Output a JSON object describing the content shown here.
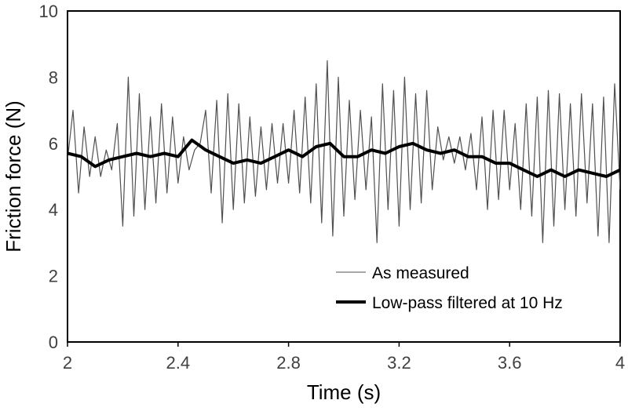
{
  "chart_data": {
    "type": "line",
    "title": "",
    "xlabel": "Time (s)",
    "ylabel": "Friction force (N)",
    "xlim": [
      2,
      4
    ],
    "ylim": [
      0,
      10
    ],
    "x_ticks": [
      2,
      2.4,
      2.8,
      3.2,
      3.6,
      4
    ],
    "x_tick_labels": [
      "2",
      "2.4",
      "2.8",
      "3.2",
      "3.6",
      "4"
    ],
    "y_ticks": [
      0,
      2,
      4,
      6,
      8,
      10
    ],
    "y_tick_labels": [
      "0",
      "2",
      "4",
      "6",
      "8",
      "10"
    ],
    "grid": false,
    "legend": {
      "position": "bottom-right"
    },
    "series": [
      {
        "name": "As measured",
        "color": "#505050",
        "style": "thin",
        "x": [
          2.0,
          2.02,
          2.04,
          2.06,
          2.08,
          2.1,
          2.12,
          2.14,
          2.16,
          2.18,
          2.2,
          2.22,
          2.24,
          2.26,
          2.28,
          2.3,
          2.32,
          2.34,
          2.36,
          2.38,
          2.4,
          2.42,
          2.44,
          2.46,
          2.48,
          2.5,
          2.52,
          2.54,
          2.56,
          2.58,
          2.6,
          2.62,
          2.64,
          2.66,
          2.68,
          2.7,
          2.72,
          2.74,
          2.76,
          2.78,
          2.8,
          2.82,
          2.84,
          2.86,
          2.88,
          2.9,
          2.92,
          2.94,
          2.96,
          2.98,
          3.0,
          3.02,
          3.04,
          3.06,
          3.08,
          3.1,
          3.12,
          3.14,
          3.16,
          3.18,
          3.2,
          3.22,
          3.24,
          3.26,
          3.28,
          3.3,
          3.32,
          3.34,
          3.36,
          3.38,
          3.4,
          3.42,
          3.44,
          3.46,
          3.48,
          3.5,
          3.52,
          3.54,
          3.56,
          3.58,
          3.6,
          3.62,
          3.64,
          3.66,
          3.68,
          3.7,
          3.72,
          3.74,
          3.76,
          3.78,
          3.8,
          3.82,
          3.84,
          3.86,
          3.88,
          3.9,
          3.92,
          3.94,
          3.96,
          3.98,
          4.0
        ],
        "y": [
          5.5,
          7.0,
          4.5,
          6.5,
          5.0,
          6.2,
          5.0,
          5.8,
          5.2,
          6.6,
          3.5,
          8.0,
          3.8,
          7.5,
          4.0,
          6.8,
          4.2,
          7.2,
          4.5,
          6.8,
          4.8,
          6.2,
          5.2,
          5.8,
          6.0,
          7.0,
          4.5,
          7.3,
          3.6,
          7.5,
          4.0,
          7.2,
          4.2,
          6.8,
          4.4,
          6.5,
          4.6,
          6.6,
          4.8,
          6.6,
          4.8,
          7.0,
          4.5,
          7.4,
          4.2,
          7.8,
          3.6,
          8.5,
          3.2,
          8.0,
          3.8,
          7.3,
          4.3,
          7.0,
          4.6,
          6.8,
          3.0,
          7.8,
          4.0,
          7.6,
          3.5,
          8.0,
          4.0,
          7.5,
          4.2,
          7.6,
          4.6,
          6.5,
          5.5,
          6.2,
          5.4,
          6.2,
          5.2,
          6.3,
          4.6,
          6.8,
          4.0,
          7.0,
          4.3,
          7.0,
          4.6,
          6.6,
          4.0,
          7.2,
          3.8,
          7.4,
          3.0,
          7.6,
          3.5,
          7.5,
          4.0,
          7.2,
          3.8,
          7.5,
          4.2,
          7.2,
          3.2,
          7.4,
          3.0,
          7.8,
          4.6
        ]
      },
      {
        "name": "Low-pass filtered at 10 Hz",
        "color": "#000000",
        "style": "thick",
        "x": [
          2.0,
          2.05,
          2.1,
          2.15,
          2.2,
          2.25,
          2.3,
          2.35,
          2.4,
          2.45,
          2.5,
          2.55,
          2.6,
          2.65,
          2.7,
          2.75,
          2.8,
          2.85,
          2.9,
          2.95,
          3.0,
          3.05,
          3.1,
          3.15,
          3.2,
          3.25,
          3.3,
          3.35,
          3.4,
          3.45,
          3.5,
          3.55,
          3.6,
          3.65,
          3.7,
          3.75,
          3.8,
          3.85,
          3.9,
          3.95,
          4.0
        ],
        "y": [
          5.7,
          5.6,
          5.3,
          5.5,
          5.6,
          5.7,
          5.6,
          5.7,
          5.6,
          6.1,
          5.8,
          5.6,
          5.4,
          5.5,
          5.4,
          5.6,
          5.8,
          5.6,
          5.9,
          6.0,
          5.6,
          5.6,
          5.8,
          5.7,
          5.9,
          6.0,
          5.8,
          5.7,
          5.8,
          5.6,
          5.6,
          5.4,
          5.4,
          5.2,
          5.0,
          5.2,
          5.0,
          5.2,
          5.1,
          5.0,
          5.2
        ]
      }
    ]
  }
}
